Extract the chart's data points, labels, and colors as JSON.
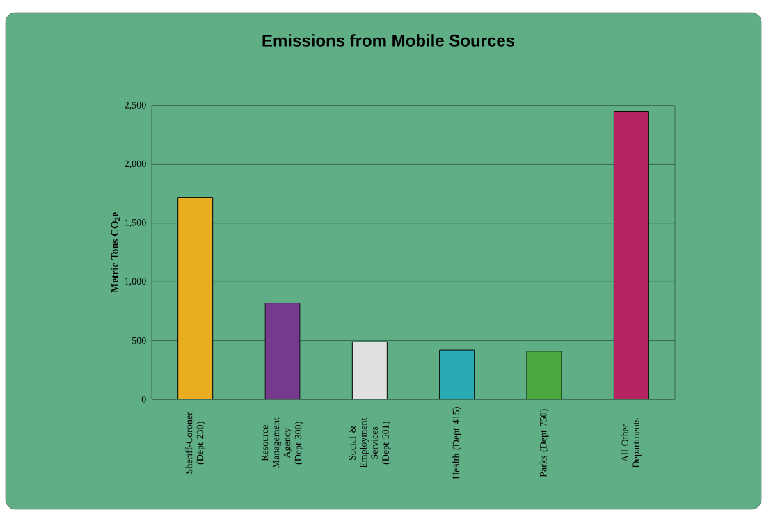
{
  "chart_data": {
    "type": "bar",
    "title": "Emissions from Mobile Sources",
    "ylabel": "Metric Tons CO$_{2}$e",
    "categories": [
      "Sheriff-Coroner (Dept 230)",
      "Resource Management Agency (Dept 300)",
      "Social & Employment Services (Dept 501)",
      "Health (Dept 415)",
      "Parks (Dept 750)",
      "All Other Departments"
    ],
    "values": [
      1720,
      820,
      490,
      420,
      410,
      2450
    ],
    "colors": [
      "#e8ad21",
      "#763a8c",
      "#e0e0e0",
      "#2aabb4",
      "#4aa83e",
      "#b52360"
    ],
    "ylim": [
      0,
      2500
    ],
    "yticks": [
      0,
      500,
      {
        "value": 1000,
        "label": "1,000"
      },
      {
        "value": 1500,
        "label": "1,500"
      },
      {
        "value": 2000,
        "label": "2,000"
      },
      {
        "value": 2500,
        "label": "2,500"
      }
    ],
    "grid": "y"
  }
}
